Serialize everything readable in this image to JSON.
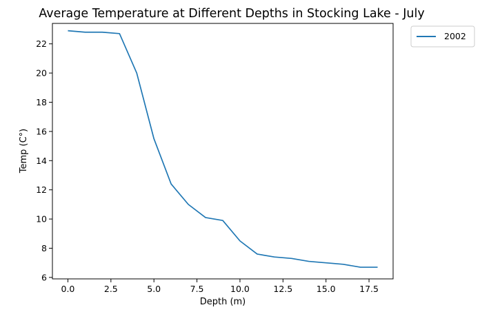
{
  "chart_data": {
    "type": "line",
    "title": "Average Temperature at Different Depths in Stocking Lake - July",
    "xlabel": "Depth (m)",
    "ylabel": "Temp (C°)",
    "xlim": [
      -0.9,
      18.9
    ],
    "ylim": [
      5.9,
      23.4
    ],
    "xticks": [
      0,
      2.5,
      5,
      7.5,
      10,
      12.5,
      15,
      17.5
    ],
    "xtick_labels": [
      "0.0",
      "2.5",
      "5.0",
      "7.5",
      "10.0",
      "12.5",
      "15.0",
      "17.5"
    ],
    "yticks": [
      6,
      8,
      10,
      12,
      14,
      16,
      18,
      20,
      22
    ],
    "ytick_labels": [
      "6",
      "8",
      "10",
      "12",
      "14",
      "16",
      "18",
      "20",
      "22"
    ],
    "grid": false,
    "legend_position": "outside-top-right",
    "series": [
      {
        "name": "2002",
        "color": "#1f77b4",
        "x": [
          0,
          1,
          2,
          3,
          4,
          5,
          6,
          7,
          8,
          9,
          10,
          11,
          12,
          13,
          14,
          15,
          16,
          17,
          18
        ],
        "y": [
          22.9,
          22.8,
          22.8,
          22.7,
          20.0,
          15.5,
          12.4,
          11.0,
          10.1,
          9.9,
          8.5,
          7.6,
          7.4,
          7.3,
          7.1,
          7.0,
          6.9,
          6.7,
          6.7
        ]
      }
    ]
  }
}
